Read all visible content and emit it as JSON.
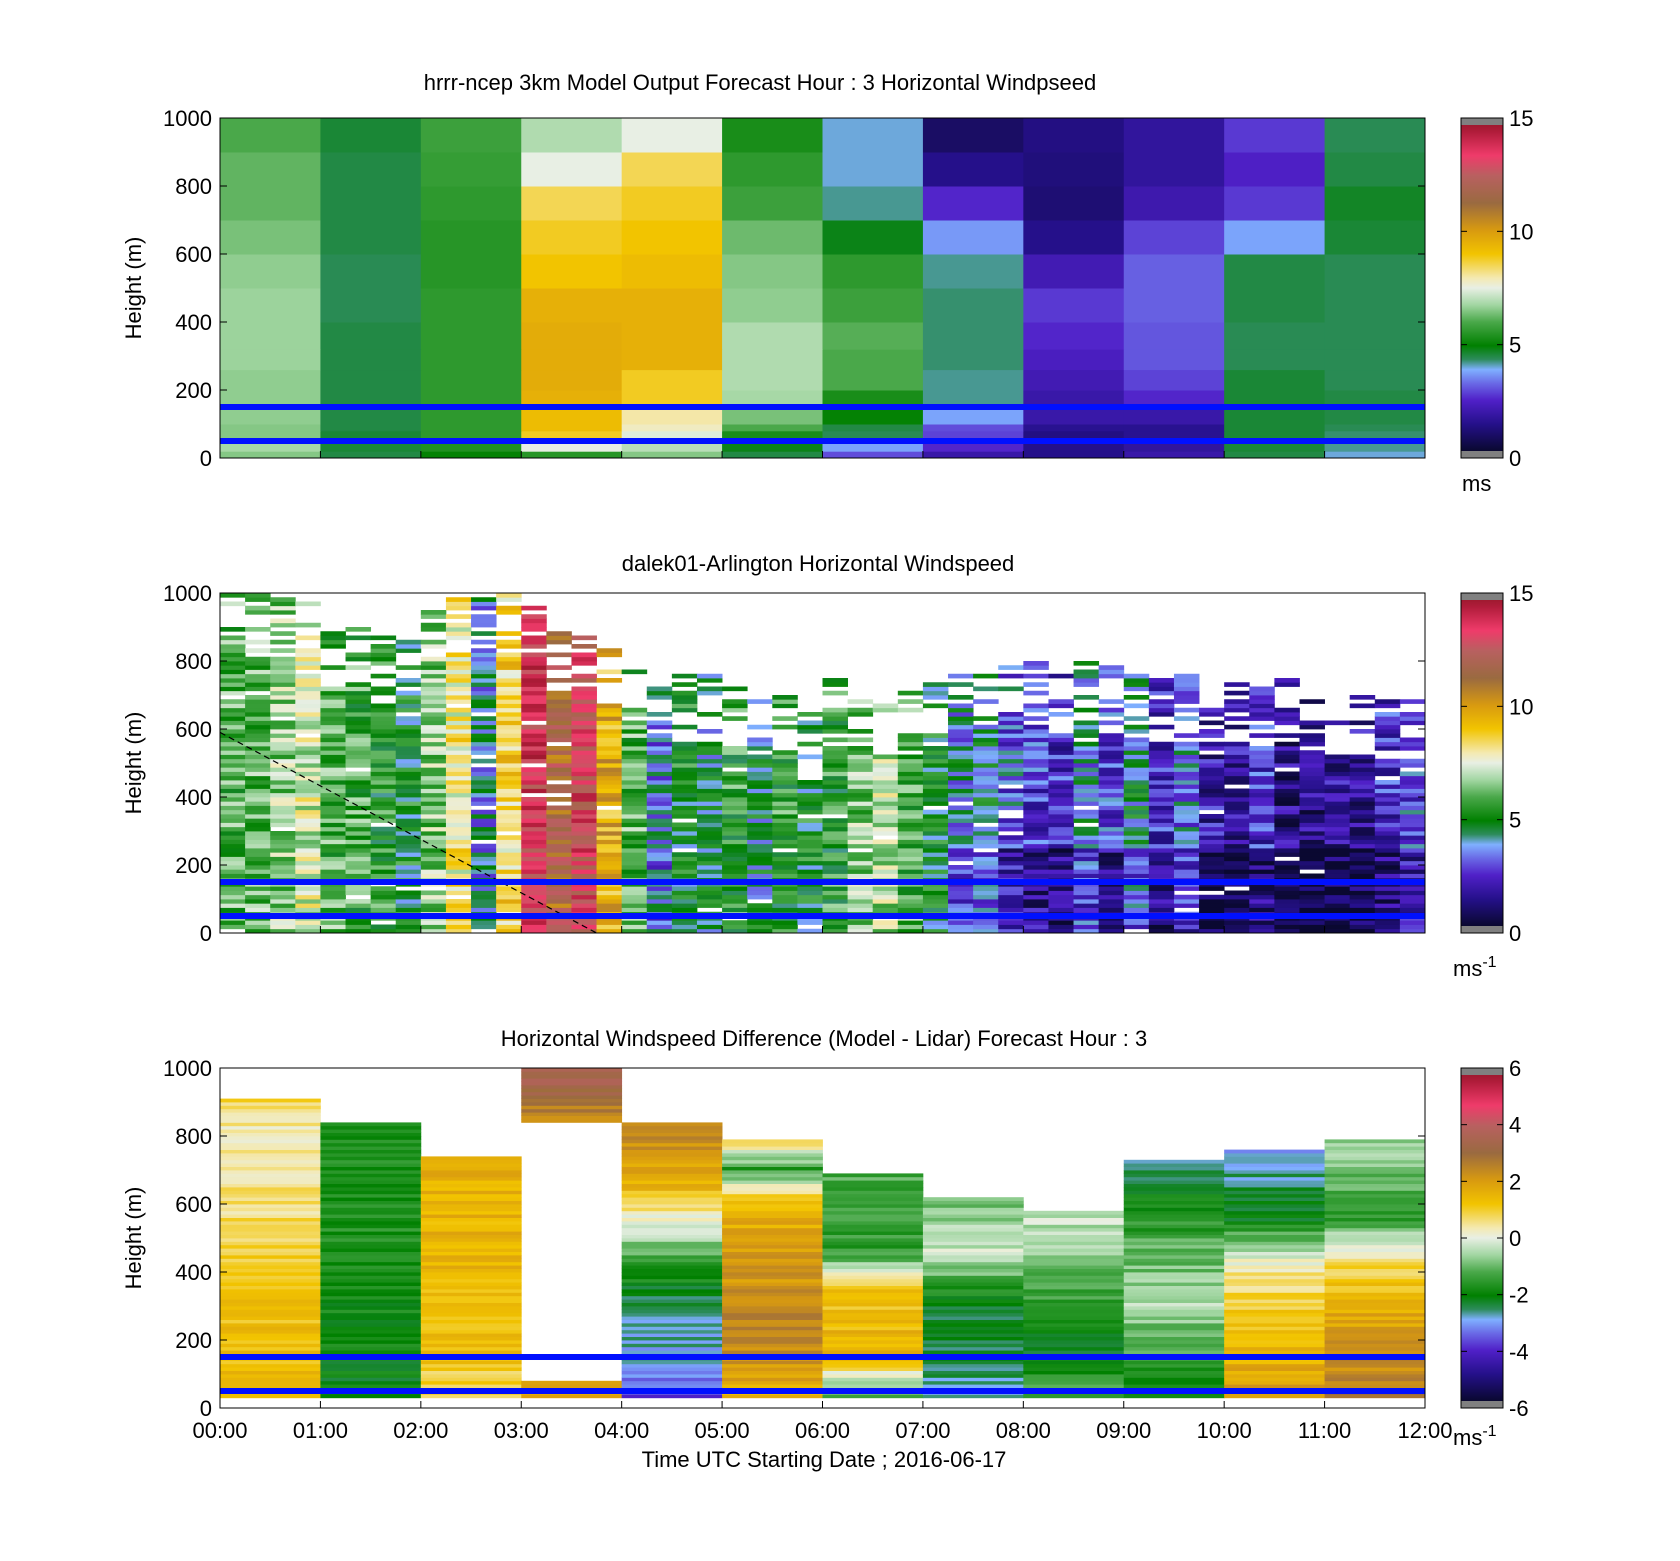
{
  "x_ticks": [
    "00:00",
    "01:00",
    "02:00",
    "03:00",
    "04:00",
    "05:00",
    "06:00",
    "07:00",
    "08:00",
    "09:00",
    "10:00",
    "11:00",
    "12:00"
  ],
  "x_label": "Time UTC  Starting Date ; 2016-06-17",
  "reference_line_color": "#0010ff",
  "chart_data": [
    {
      "type": "heatmap",
      "title": "hrrr-ncep 3km Model Output   Forecast Hour : 3 Horizontal Windpseed",
      "ylabel": "Height (m)",
      "ylim": [
        0,
        1000
      ],
      "y_ticks": [
        "0",
        "200",
        "400",
        "600",
        "800",
        "1000"
      ],
      "x_range_hours": [
        0,
        12
      ],
      "colorbar": {
        "min": 0,
        "max": 15,
        "ticks": [
          "0",
          "5",
          "10",
          "15"
        ],
        "unit": "ms"
      },
      "reference_lines_m": [
        150,
        50
      ],
      "heights_m": [
        0,
        20,
        50,
        80,
        100,
        160,
        200,
        260,
        320,
        400,
        500,
        600,
        700,
        800,
        900,
        1000
      ],
      "speed_ms": [
        [
          6.5,
          4.5,
          5.0,
          5.5,
          6.5,
          4.5,
          3.0,
          2.0,
          1.5,
          2.0,
          4.5,
          4.0
        ],
        [
          6.8,
          4.6,
          5.4,
          7.5,
          7.0,
          4.8,
          3.8,
          2.6,
          1.5,
          1.8,
          4.6,
          4.2
        ],
        [
          6.5,
          4.6,
          5.6,
          8.8,
          7.4,
          5.3,
          4.4,
          2.9,
          1.4,
          1.6,
          4.6,
          4.3
        ],
        [
          6.5,
          4.5,
          5.6,
          9.2,
          7.8,
          6.0,
          4.5,
          3.0,
          1.6,
          1.6,
          4.6,
          4.4
        ],
        [
          6.6,
          4.5,
          5.6,
          9.2,
          8.0,
          6.4,
          5.0,
          3.8,
          2.0,
          2.0,
          4.6,
          4.5
        ],
        [
          6.6,
          4.5,
          5.6,
          9.5,
          8.8,
          6.8,
          5.3,
          4.2,
          2.0,
          2.6,
          4.6,
          4.5
        ],
        [
          6.6,
          4.5,
          5.6,
          9.6,
          8.8,
          6.9,
          6.0,
          4.2,
          2.2,
          2.9,
          4.6,
          4.4
        ],
        [
          6.7,
          4.5,
          5.6,
          9.6,
          9.5,
          6.9,
          6.0,
          4.3,
          2.4,
          3.1,
          4.4,
          4.4
        ],
        [
          6.7,
          4.5,
          5.6,
          9.6,
          9.5,
          6.9,
          6.1,
          4.3,
          2.6,
          3.1,
          4.4,
          4.4
        ],
        [
          6.7,
          4.4,
          5.6,
          9.5,
          9.5,
          6.6,
          5.8,
          4.3,
          2.8,
          3.2,
          4.5,
          4.4
        ],
        [
          6.6,
          4.4,
          5.5,
          9.0,
          9.2,
          6.5,
          5.6,
          4.2,
          2.2,
          3.2,
          4.5,
          4.4
        ],
        [
          6.4,
          4.5,
          5.5,
          8.8,
          9.0,
          6.3,
          4.8,
          3.7,
          1.5,
          2.9,
          3.8,
          4.6
        ],
        [
          6.2,
          4.5,
          5.6,
          8.5,
          8.8,
          5.8,
          4.2,
          2.6,
          1.2,
          2.1,
          2.8,
          4.7
        ],
        [
          6.2,
          4.5,
          5.7,
          7.5,
          8.5,
          5.6,
          4.0,
          1.5,
          1.3,
          1.8,
          2.5,
          4.5
        ],
        [
          6.0,
          4.6,
          5.8,
          6.9,
          7.5,
          5.3,
          4.0,
          1.0,
          1.4,
          1.8,
          2.8,
          4.4
        ]
      ]
    },
    {
      "type": "heatmap",
      "title": "dalek01-Arlington  Horizontal Windspeed",
      "ylabel": "Height (m)",
      "ylim": [
        0,
        1000
      ],
      "y_ticks": [
        "0",
        "200",
        "400",
        "600",
        "800",
        "1000"
      ],
      "x_range_hours": [
        0,
        12
      ],
      "colorbar": {
        "min": 0,
        "max": 15,
        "ticks": [
          "0",
          "5",
          "10",
          "15"
        ],
        "unit": "ms",
        "unit_exponent": "-1"
      },
      "reference_lines_m": [
        150,
        50
      ],
      "dashed_line": {
        "from_hours": 0,
        "from_m": 590,
        "to_hours": 3.75,
        "to_m": 0
      },
      "column_hours": 0.25,
      "column_tops_m": [
        1000,
        1000,
        1000,
        1000,
        900,
        900,
        870,
        880,
        1000,
        1000,
        1000,
        1000,
        1000,
        900,
        900,
        850,
        800,
        780,
        760,
        760,
        740,
        720,
        700,
        640,
        740,
        740,
        700,
        740,
        740,
        800,
        800,
        800,
        800,
        780,
        800,
        780,
        760,
        760,
        760,
        720,
        760,
        740,
        740,
        730,
        720,
        700,
        700,
        700
      ],
      "column_base_ms": [
        6.0,
        6.2,
        6.6,
        7.4,
        6.0,
        5.8,
        5.4,
        5.0,
        6.5,
        8.0,
        4.0,
        8.5,
        13.5,
        11.5,
        13.0,
        9.5,
        6.0,
        3.5,
        5.0,
        4.5,
        5.5,
        4.5,
        5.5,
        5.0,
        5.5,
        6.5,
        7.0,
        6.0,
        4.8,
        4.0,
        4.5,
        3.2,
        2.8,
        2.5,
        4.0,
        2.8,
        4.5,
        2.6,
        3.6,
        2.0,
        1.8,
        2.6,
        1.5,
        1.5,
        2.0,
        1.8,
        2.5,
        3.0
      ]
    },
    {
      "type": "heatmap",
      "title": "Horizontal Windspeed Difference (Model - Lidar) Forecast Hour : 3",
      "ylabel": "Height (m)",
      "ylim": [
        0,
        1000
      ],
      "y_ticks": [
        "0",
        "200",
        "400",
        "600",
        "800",
        "1000"
      ],
      "x_range_hours": [
        0,
        12
      ],
      "colorbar": {
        "min": -6,
        "max": 6,
        "ticks": [
          "-6",
          "-4",
          "-2",
          "0",
          "2",
          "4",
          "6"
        ],
        "unit": "ms",
        "unit_exponent": "-1"
      },
      "reference_lines_m": [
        150,
        50
      ],
      "hourly_columns": [
        {
          "hour": 0,
          "top_m": 910,
          "diff": [
            [
              0,
              1.5
            ],
            [
              300,
              1.2
            ],
            [
              600,
              0.6
            ],
            [
              800,
              0.3
            ],
            [
              910,
              1.0
            ]
          ]
        },
        {
          "hour": 1,
          "top_m": 835,
          "diff": [
            [
              0,
              -2.1
            ],
            [
              400,
              -1.8
            ],
            [
              835,
              -1.6
            ]
          ]
        },
        {
          "hour": 2,
          "top_m": 735,
          "diff": [
            [
              0,
              0.4
            ],
            [
              150,
              1.3
            ],
            [
              735,
              1.6
            ]
          ]
        },
        {
          "hour": 3,
          "top_m": 1000,
          "diff": [
            [
              840,
              2.0
            ],
            [
              900,
              3.0
            ],
            [
              970,
              3.5
            ]
          ],
          "gap_m": [
            80,
            840
          ]
        },
        {
          "hour": 4,
          "top_m": 835,
          "diff": [
            [
              0,
              -3.8
            ],
            [
              170,
              -2.8
            ],
            [
              300,
              -2.6
            ],
            [
              500,
              -0.6
            ],
            [
              650,
              1.5
            ],
            [
              835,
              2.5
            ]
          ]
        },
        {
          "hour": 5,
          "top_m": 790,
          "diff": [
            [
              0,
              1.2
            ],
            [
              200,
              2.6
            ],
            [
              600,
              1.5
            ],
            [
              700,
              -1.5
            ],
            [
              790,
              1.2
            ]
          ]
        },
        {
          "hour": 6,
          "top_m": 690,
          "diff": [
            [
              0,
              -2.0
            ],
            [
              150,
              1.5
            ],
            [
              350,
              1.2
            ],
            [
              450,
              -1.5
            ],
            [
              690,
              -1.2
            ]
          ]
        },
        {
          "hour": 7,
          "top_m": 615,
          "diff": [
            [
              0,
              -2.6
            ],
            [
              300,
              -2.2
            ],
            [
              450,
              -0.2
            ],
            [
              615,
              -1.0
            ]
          ]
        },
        {
          "hour": 8,
          "top_m": 575,
          "diff": [
            [
              0,
              -1.0
            ],
            [
              200,
              -2.3
            ],
            [
              350,
              -1.2
            ],
            [
              575,
              -0.2
            ]
          ]
        },
        {
          "hour": 9,
          "top_m": 730,
          "diff": [
            [
              0,
              -2.2
            ],
            [
              300,
              -0.5
            ],
            [
              450,
              -1.0
            ],
            [
              730,
              -2.8
            ]
          ]
        },
        {
          "hour": 10,
          "top_m": 760,
          "diff": [
            [
              0,
              2.4
            ],
            [
              150,
              1.5
            ],
            [
              400,
              0.5
            ],
            [
              550,
              -2.0
            ],
            [
              760,
              -3.0
            ]
          ]
        },
        {
          "hour": 11,
          "top_m": 790,
          "diff": [
            [
              0,
              2.8
            ],
            [
              300,
              1.6
            ],
            [
              450,
              0.5
            ],
            [
              550,
              -1.5
            ],
            [
              790,
              -0.5
            ]
          ]
        }
      ]
    }
  ]
}
